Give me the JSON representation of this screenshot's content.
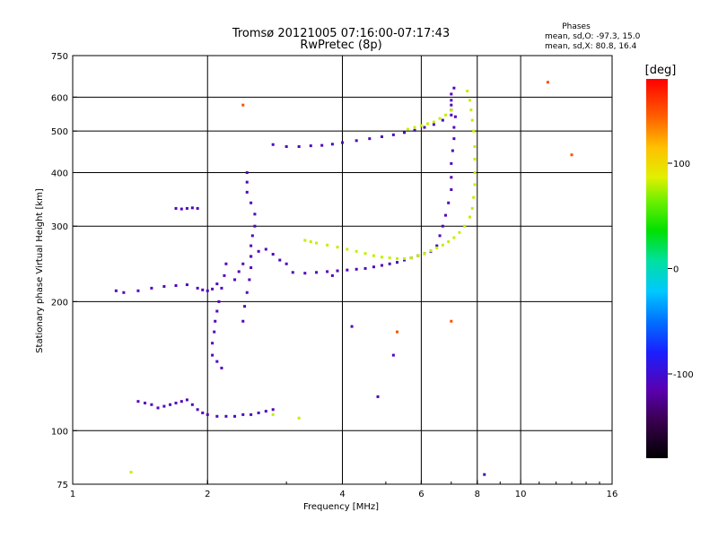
{
  "chart_data": {
    "type": "scatter",
    "title": "Tromsø 20121005 07:16:00-07:17:43",
    "subtitle": "RwPretec (8p)",
    "xlabel": "Frequency [MHz]",
    "ylabel": "Stationary phase Virtual Height [km]",
    "x_scale": "log",
    "y_scale": "log",
    "xlim": [
      1,
      16
    ],
    "ylim": [
      75,
      750
    ],
    "x_ticks": [
      1,
      2,
      4,
      6,
      8,
      10,
      16
    ],
    "x_tick_labels": [
      "1",
      "2",
      "4",
      "6",
      "8",
      "10",
      "16"
    ],
    "y_ticks": [
      75,
      100,
      200,
      300,
      400,
      500,
      600,
      750
    ],
    "y_tick_labels": [
      "75",
      "100",
      "200",
      "300",
      "400",
      "500",
      "600",
      "750"
    ],
    "grid": true,
    "stats": {
      "header": "Phases",
      "line_o": "mean, sd,O: -97.3, 15.0",
      "line_x": "mean, sd,X:  80.8, 16.4"
    },
    "colorbar": {
      "label": "[deg]",
      "range": [
        -180,
        180
      ],
      "ticks": [
        100,
        0,
        -100
      ],
      "tick_labels": [
        "100",
        "0",
        "-100"
      ],
      "placement": "right"
    },
    "series": [
      {
        "phase": -110,
        "points": [
          [
            1.4,
            117
          ],
          [
            1.45,
            116
          ],
          [
            1.5,
            115
          ],
          [
            1.55,
            113
          ],
          [
            1.6,
            114
          ],
          [
            1.65,
            115
          ],
          [
            1.7,
            116
          ],
          [
            1.75,
            117
          ],
          [
            1.8,
            118
          ],
          [
            1.85,
            115
          ],
          [
            1.9,
            112
          ],
          [
            1.95,
            110
          ],
          [
            2.0,
            109
          ],
          [
            2.1,
            108
          ],
          [
            2.2,
            108
          ],
          [
            2.3,
            108
          ],
          [
            2.4,
            109
          ],
          [
            2.5,
            109
          ],
          [
            2.6,
            110
          ],
          [
            2.7,
            111
          ],
          [
            2.8,
            112
          ],
          [
            1.25,
            212
          ],
          [
            1.3,
            210
          ],
          [
            1.4,
            212
          ],
          [
            1.5,
            215
          ],
          [
            1.6,
            217
          ],
          [
            1.7,
            218
          ],
          [
            1.8,
            219
          ],
          [
            1.9,
            215
          ],
          [
            1.95,
            213
          ],
          [
            2.0,
            212
          ],
          [
            2.05,
            214
          ],
          [
            2.1,
            220
          ],
          [
            2.05,
            150
          ],
          [
            2.05,
            160
          ],
          [
            2.07,
            170
          ],
          [
            2.08,
            180
          ],
          [
            2.1,
            190
          ],
          [
            2.12,
            200
          ],
          [
            2.15,
            215
          ],
          [
            2.18,
            230
          ],
          [
            2.2,
            245
          ],
          [
            2.15,
            140
          ],
          [
            2.1,
            145
          ],
          [
            2.4,
            180
          ],
          [
            2.42,
            195
          ],
          [
            2.45,
            210
          ],
          [
            2.48,
            225
          ],
          [
            2.5,
            240
          ],
          [
            2.5,
            255
          ],
          [
            2.5,
            270
          ],
          [
            2.52,
            285
          ],
          [
            2.55,
            300
          ],
          [
            2.55,
            320
          ],
          [
            2.5,
            340
          ],
          [
            2.45,
            360
          ],
          [
            2.45,
            380
          ],
          [
            2.45,
            400
          ],
          [
            2.3,
            225
          ],
          [
            2.35,
            235
          ],
          [
            2.4,
            245
          ],
          [
            2.5,
            255
          ],
          [
            2.6,
            262
          ],
          [
            2.7,
            265
          ],
          [
            2.8,
            258
          ],
          [
            2.9,
            250
          ],
          [
            3.0,
            245
          ],
          [
            3.1,
            234
          ],
          [
            3.3,
            233
          ],
          [
            3.5,
            234
          ],
          [
            3.7,
            235
          ],
          [
            3.9,
            236
          ],
          [
            4.1,
            237
          ],
          [
            4.3,
            238
          ],
          [
            4.5,
            239
          ],
          [
            4.7,
            241
          ],
          [
            4.9,
            243
          ],
          [
            5.1,
            245
          ],
          [
            5.3,
            247
          ],
          [
            5.5,
            250
          ],
          [
            5.7,
            253
          ],
          [
            5.9,
            256
          ],
          [
            6.1,
            259
          ],
          [
            6.3,
            262
          ],
          [
            2.8,
            465
          ],
          [
            3.0,
            460
          ],
          [
            3.2,
            460
          ],
          [
            3.4,
            462
          ],
          [
            3.6,
            463
          ],
          [
            3.8,
            466
          ],
          [
            4.0,
            470
          ],
          [
            4.3,
            475
          ],
          [
            4.6,
            480
          ],
          [
            4.9,
            485
          ],
          [
            5.2,
            490
          ],
          [
            5.5,
            496
          ],
          [
            5.8,
            502
          ],
          [
            6.1,
            510
          ],
          [
            6.4,
            518
          ],
          [
            6.7,
            530
          ],
          [
            7.0,
            545
          ],
          [
            7.0,
            560
          ],
          [
            7.0,
            575
          ],
          [
            7.0,
            590
          ],
          [
            7.0,
            610
          ],
          [
            7.1,
            630
          ],
          [
            1.7,
            330
          ],
          [
            1.75,
            329
          ],
          [
            1.8,
            330
          ],
          [
            1.85,
            331
          ],
          [
            1.9,
            330
          ],
          [
            6.5,
            270
          ],
          [
            6.6,
            285
          ],
          [
            6.7,
            300
          ],
          [
            6.8,
            318
          ],
          [
            6.9,
            340
          ],
          [
            7.0,
            365
          ],
          [
            7.0,
            390
          ],
          [
            7.0,
            420
          ],
          [
            7.05,
            450
          ],
          [
            7.1,
            480
          ],
          [
            7.1,
            510
          ],
          [
            7.15,
            540
          ],
          [
            8.3,
            79
          ],
          [
            4.8,
            120
          ],
          [
            4.2,
            175
          ],
          [
            5.2,
            150
          ],
          [
            3.8,
            230
          ]
        ]
      },
      {
        "phase": 80,
        "points": [
          [
            3.3,
            278
          ],
          [
            3.4,
            276
          ],
          [
            3.5,
            274
          ],
          [
            3.7,
            271
          ],
          [
            3.9,
            268
          ],
          [
            4.1,
            265
          ],
          [
            4.3,
            262
          ],
          [
            4.5,
            259
          ],
          [
            4.7,
            256
          ],
          [
            4.9,
            254
          ],
          [
            5.1,
            253
          ],
          [
            5.3,
            252
          ],
          [
            5.5,
            252
          ],
          [
            5.7,
            253
          ],
          [
            5.9,
            256
          ],
          [
            6.1,
            259
          ],
          [
            6.3,
            263
          ],
          [
            6.5,
            267
          ],
          [
            6.7,
            271
          ],
          [
            6.9,
            276
          ],
          [
            7.1,
            282
          ],
          [
            7.3,
            290
          ],
          [
            7.5,
            300
          ],
          [
            7.7,
            315
          ],
          [
            7.8,
            330
          ],
          [
            7.85,
            350
          ],
          [
            7.9,
            375
          ],
          [
            7.9,
            400
          ],
          [
            7.9,
            430
          ],
          [
            7.9,
            460
          ],
          [
            7.85,
            500
          ],
          [
            7.8,
            530
          ],
          [
            7.75,
            560
          ],
          [
            7.7,
            590
          ],
          [
            7.6,
            620
          ],
          [
            5.6,
            505
          ],
          [
            5.8,
            510
          ],
          [
            6.0,
            515
          ],
          [
            6.2,
            520
          ],
          [
            6.4,
            525
          ],
          [
            6.6,
            535
          ],
          [
            6.8,
            545
          ],
          [
            7.0,
            560
          ],
          [
            2.8,
            109
          ],
          [
            1.35,
            80
          ],
          [
            3.2,
            107
          ]
        ]
      },
      {
        "phase": 150,
        "points": [
          [
            2.4,
            575
          ],
          [
            11.5,
            650
          ],
          [
            13.0,
            440
          ],
          [
            7.0,
            180
          ],
          [
            5.3,
            170
          ]
        ]
      }
    ]
  }
}
